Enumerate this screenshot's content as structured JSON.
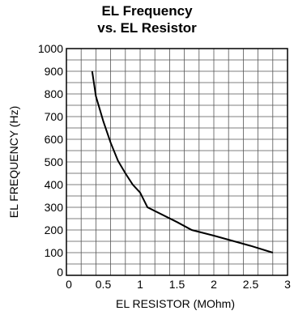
{
  "chart_data": {
    "type": "line",
    "title": [
      "EL Frequency",
      "vs. EL Resistor"
    ],
    "xlabel": "EL RESISTOR (MOhm)",
    "ylabel": "EL FREQUENCY (Hz)",
    "xlim": [
      0,
      3
    ],
    "ylim": [
      0,
      1000
    ],
    "x_ticks": [
      "0",
      "0.5",
      "1",
      "1.5",
      "2",
      "2.5",
      "3"
    ],
    "y_ticks": [
      "0",
      "100",
      "200",
      "300",
      "400",
      "500",
      "600",
      "700",
      "800",
      "900",
      "1000"
    ],
    "grid": true,
    "series": [
      {
        "x": [
          0.35,
          0.4,
          0.5,
          0.6,
          0.7,
          0.8,
          0.9,
          1.0,
          1.1,
          1.5,
          1.7,
          2.0,
          2.5,
          2.8
        ],
        "y": [
          900,
          790,
          680,
          585,
          505,
          450,
          400,
          365,
          300,
          235,
          200,
          175,
          130,
          100
        ],
        "color": "#000000"
      }
    ]
  }
}
